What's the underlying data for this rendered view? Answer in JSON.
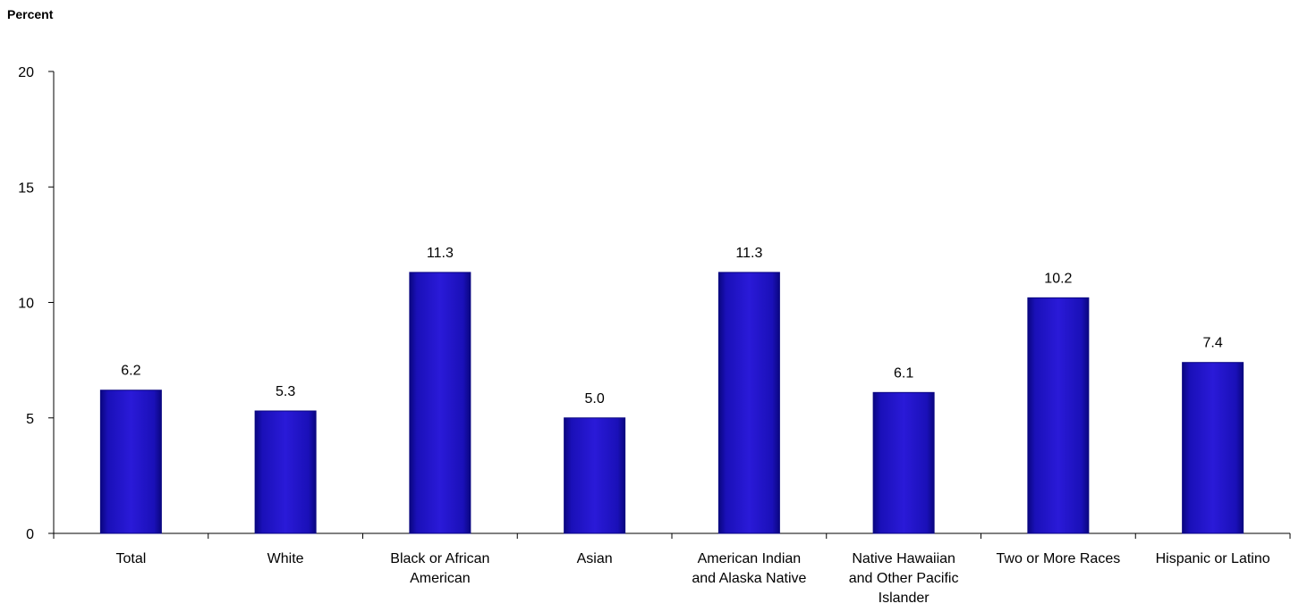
{
  "chart_data": {
    "type": "bar",
    "title": "",
    "xlabel": "",
    "ylabel": "Percent",
    "ylim": [
      0,
      20
    ],
    "yticks": [
      0,
      5,
      10,
      15,
      20
    ],
    "grid": false,
    "bar_color": "#1a0fb8",
    "categories": [
      [
        "Total"
      ],
      [
        "White"
      ],
      [
        "Black or African",
        "American"
      ],
      [
        "Asian"
      ],
      [
        "American Indian",
        "and Alaska Native"
      ],
      [
        "Native Hawaiian",
        "and Other Pacific",
        "Islander"
      ],
      [
        "Two or More Races"
      ],
      [
        "Hispanic or Latino"
      ]
    ],
    "values": [
      6.2,
      5.3,
      11.3,
      5.0,
      11.3,
      6.1,
      10.2,
      7.4
    ],
    "data_labels": [
      "6.2",
      "5.3",
      "11.3",
      "5.0",
      "11.3",
      "6.1",
      "10.2",
      "7.4"
    ]
  }
}
